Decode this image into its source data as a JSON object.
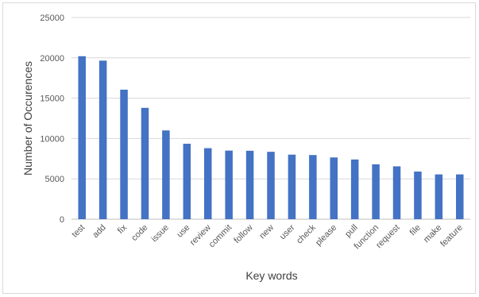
{
  "chart_data": {
    "type": "bar",
    "title": "",
    "xlabel": "Key words",
    "ylabel": "Number of Occurences",
    "ylim": [
      0,
      25000
    ],
    "yticks": [
      0,
      5000,
      10000,
      15000,
      20000,
      25000
    ],
    "grid": true,
    "legend": "none",
    "bar_color": "#4472C4",
    "categories": [
      "test",
      "add",
      "fix",
      "code",
      "issue",
      "use",
      "review",
      "commit",
      "follow",
      "new",
      "user",
      "check",
      "please",
      "pull",
      "function",
      "request",
      "file",
      "make",
      "feature"
    ],
    "values": [
      20200,
      19650,
      16050,
      13800,
      11000,
      9350,
      8800,
      8500,
      8480,
      8350,
      8000,
      7950,
      7650,
      7400,
      6800,
      6550,
      5900,
      5550,
      5550
    ]
  }
}
